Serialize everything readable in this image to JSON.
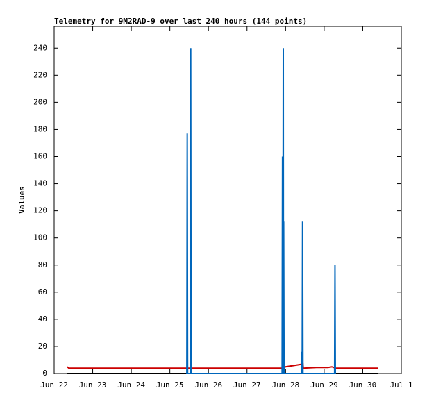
{
  "chart_data": {
    "type": "line",
    "title": "Telemetry for 9M2RAD-9 over last 240 hours (144 points)",
    "y_label": "Values",
    "xlim": [
      0,
      9
    ],
    "xticks": [
      {
        "value": 0,
        "label": "Jun 22"
      },
      {
        "value": 1,
        "label": "Jun 23"
      },
      {
        "value": 2,
        "label": "Jun 24"
      },
      {
        "value": 3,
        "label": "Jun 25"
      },
      {
        "value": 4,
        "label": "Jun 26"
      },
      {
        "value": 5,
        "label": "Jun 27"
      },
      {
        "value": 6,
        "label": "Jun 28"
      },
      {
        "value": 7,
        "label": "Jun 29"
      },
      {
        "value": 8,
        "label": "Jun 30"
      },
      {
        "value": 9,
        "label": "Jul 1"
      }
    ],
    "ylim": [
      0,
      256
    ],
    "yticks": [
      0,
      20,
      40,
      60,
      80,
      100,
      120,
      140,
      160,
      180,
      200,
      220,
      240
    ],
    "series": [
      {
        "color": "#000000",
        "x": [
          0.34,
          8.4
        ],
        "values": [
          0,
          0
        ]
      },
      {
        "color": "#cc0000",
        "x": [
          0.34,
          0.38,
          5.95,
          6.0,
          6.45,
          6.46,
          6.8,
          7.1,
          7.2,
          7.3,
          8.4
        ],
        "values": [
          5,
          4,
          4,
          5,
          7,
          4,
          4.5,
          4.5,
          5,
          4,
          4
        ]
      },
      {
        "color": "#0066bb",
        "x": [
          3.44,
          3.45,
          3.46,
          3.53,
          3.54,
          3.55,
          5.91,
          5.92,
          5.93,
          5.94,
          5.945,
          5.95,
          5.96,
          6.41,
          6.42,
          6.43,
          6.44,
          6.45,
          7.27,
          7.28,
          7.29
        ],
        "values": [
          0,
          177,
          0,
          0,
          240,
          0,
          0,
          160,
          0,
          240,
          0,
          112,
          0,
          0,
          16,
          0,
          112,
          0,
          0,
          80,
          0
        ]
      }
    ]
  }
}
